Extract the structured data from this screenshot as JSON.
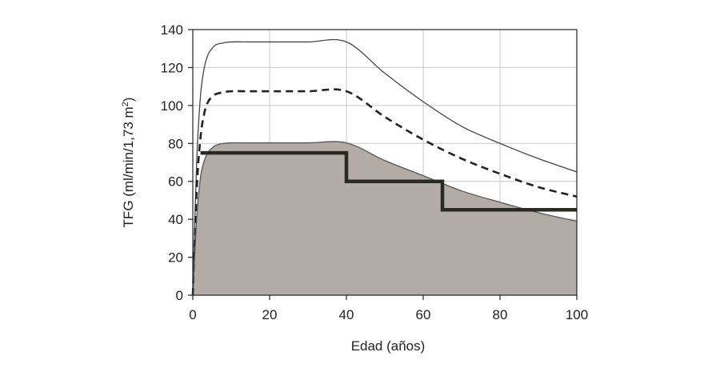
{
  "chart_data": {
    "type": "line",
    "xlabel": "Edad (años)",
    "ylabel_main": "TFG (ml/min/1,73 m",
    "ylabel_sup": "2",
    "ylabel_close": ")",
    "xlim": [
      0,
      100
    ],
    "ylim": [
      0,
      140
    ],
    "xticks": [
      0,
      20,
      40,
      60,
      80,
      100
    ],
    "yticks": [
      0,
      20,
      40,
      60,
      80,
      100,
      120,
      140
    ],
    "grid": true,
    "colors": {
      "grid": "#c8c8c8",
      "axis": "#222222",
      "upper_curve": "#444444",
      "median_curve": "#222222",
      "lower_fill": "#b3aca6",
      "lower_curve": "#555555",
      "step_threshold": "#2a2a22"
    },
    "series": [
      {
        "style": "thin-solid",
        "x": [
          0,
          1,
          2,
          3,
          4,
          5,
          6,
          8,
          10,
          15,
          20,
          30,
          40,
          50,
          60,
          70,
          80,
          90,
          100
        ],
        "y": [
          0,
          70,
          105,
          120,
          127,
          130,
          132,
          133,
          133.5,
          133.5,
          133.5,
          133.5,
          133.5,
          117,
          102,
          89,
          80,
          72,
          65
        ]
      },
      {
        "style": "dashed",
        "x": [
          0,
          1,
          2,
          3,
          4,
          5,
          6,
          8,
          10,
          15,
          20,
          30,
          40,
          50,
          60,
          70,
          80,
          90,
          100
        ],
        "y": [
          0,
          55,
          83,
          96,
          102,
          104.5,
          106,
          107,
          107.5,
          107.5,
          107.5,
          107.5,
          107.5,
          94,
          82,
          72,
          64,
          57,
          52
        ]
      },
      {
        "style": "filled-area",
        "x": [
          0,
          1,
          2,
          3,
          4,
          5,
          6,
          8,
          10,
          15,
          20,
          30,
          40,
          50,
          60,
          70,
          80,
          90,
          100
        ],
        "y": [
          0,
          40,
          62,
          71,
          75.5,
          77.5,
          79,
          80,
          80.3,
          80.3,
          80.3,
          80.3,
          80.3,
          71,
          63,
          55,
          49,
          43.5,
          39
        ]
      },
      {
        "style": "thick-step",
        "x": [
          2,
          40,
          40,
          65,
          65,
          100
        ],
        "y": [
          75,
          75,
          60,
          60,
          45,
          45
        ]
      }
    ]
  }
}
